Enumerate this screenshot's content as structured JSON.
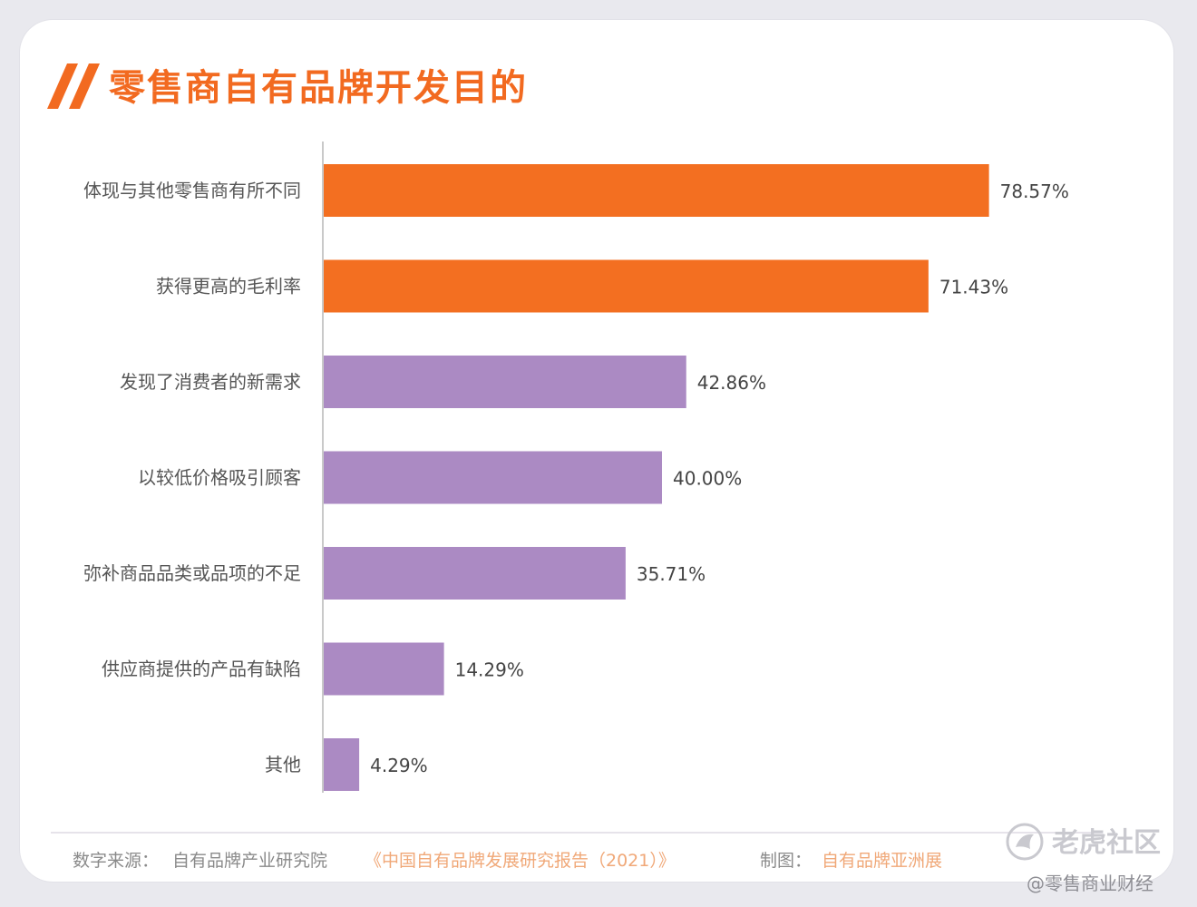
{
  "header": {
    "title": "零售商自有品牌开发目的"
  },
  "chart_data": {
    "type": "bar",
    "orientation": "horizontal",
    "title": "零售商自有品牌开发目的",
    "categories": [
      "体现与其他零售商有所不同",
      "获得更高的毛利率",
      "发现了消费者的新需求",
      "以较低价格吸引顾客",
      "弥补商品品类或品项的不足",
      "供应商提供的产品有缺陷",
      "其他"
    ],
    "values": [
      78.57,
      71.43,
      42.86,
      40.0,
      35.71,
      14.29,
      4.29
    ],
    "value_labels": [
      "78.57%",
      "71.43%",
      "42.86%",
      "40.00%",
      "35.71%",
      "14.29%",
      "4.29%"
    ],
    "unit": "%",
    "xlim": [
      0,
      100
    ],
    "highlight_count": 2,
    "colors": {
      "highlight": "#f36f21",
      "default": "#ab8ac3",
      "axis": "#c9c9c9"
    },
    "grid": false,
    "legend": "none"
  },
  "footer": {
    "source_label": "数字来源：",
    "source_text": "自有品牌产业研究院",
    "source_report": "《中国自有品牌发展研究报告（2021）》",
    "credit_label": "制图：",
    "credit_text": "自有品牌亚洲展"
  },
  "watermark": {
    "brand": "老虎社区",
    "account": "@零售商业财经",
    "logo_icon": "tiger-community-logo-icon"
  },
  "colors": {
    "accent": "#f26a20",
    "muted_text": "#8a8a8a",
    "footer_highlight": "#f0a878"
  }
}
